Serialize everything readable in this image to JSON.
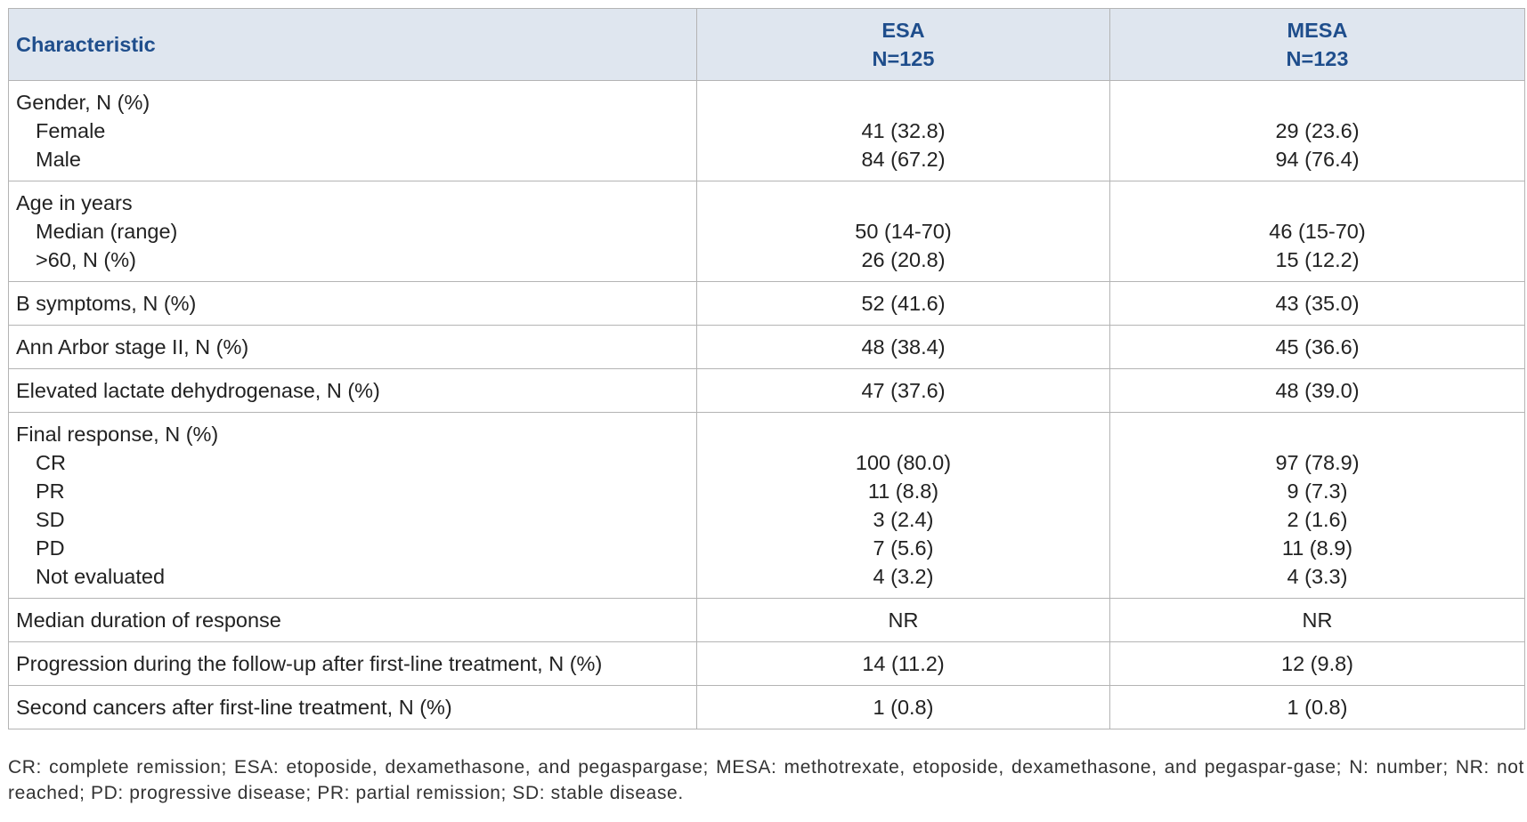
{
  "table": {
    "header": [
      "Characteristic",
      [
        "ESA",
        "N=125"
      ],
      [
        "MESA",
        "N=123"
      ]
    ],
    "groups": [
      {
        "title": "Gender, N (%)",
        "items": [
          [
            "Female",
            "41 (32.8)",
            "29 (23.6)"
          ],
          [
            "Male",
            "84 (67.2)",
            "94 (76.4)"
          ]
        ]
      },
      {
        "title": "Age in years",
        "items": [
          [
            "Median (range)",
            "50 (14-70)",
            "46 (15-70)"
          ],
          [
            ">60, N (%)",
            "26 (20.8)",
            "15 (12.2)"
          ]
        ]
      },
      {
        "items": [
          [
            "B symptoms, N (%)",
            "52 (41.6)",
            "43 (35.0)"
          ]
        ]
      },
      {
        "items": [
          [
            "Ann Arbor stage II, N (%)",
            "48 (38.4)",
            "45 (36.6)"
          ]
        ]
      },
      {
        "items": [
          [
            "Elevated lactate dehydrogenase, N (%)",
            "47 (37.6)",
            "48 (39.0)"
          ]
        ]
      },
      {
        "title": "Final response, N (%)",
        "items": [
          [
            "CR",
            "100 (80.0)",
            "97 (78.9)"
          ],
          [
            "PR",
            "11 (8.8)",
            "9 (7.3)"
          ],
          [
            "SD",
            "3 (2.4)",
            "2 (1.6)"
          ],
          [
            "PD",
            "7 (5.6)",
            "11 (8.9)"
          ],
          [
            "Not evaluated",
            "4 (3.2)",
            "4 (3.3)"
          ]
        ]
      },
      {
        "items": [
          [
            "Median duration of response",
            "NR",
            "NR"
          ]
        ]
      },
      {
        "items": [
          [
            "Progression during the follow-up after first-line treatment, N (%)",
            "14 (11.2)",
            "12 (9.8)"
          ]
        ]
      },
      {
        "items": [
          [
            "Second cancers after first-line treatment, N (%)",
            "1 (0.8)",
            "1 (0.8)"
          ]
        ]
      }
    ]
  },
  "footnote": "CR: complete remission; ESA: etoposide, dexamethasone, and pegaspargase; MESA: methotrexate, etoposide, dexamethasone, and pegaspar-gase; N: number; NR: not reached; PD: progressive disease; PR: partial remission; SD: stable disease."
}
